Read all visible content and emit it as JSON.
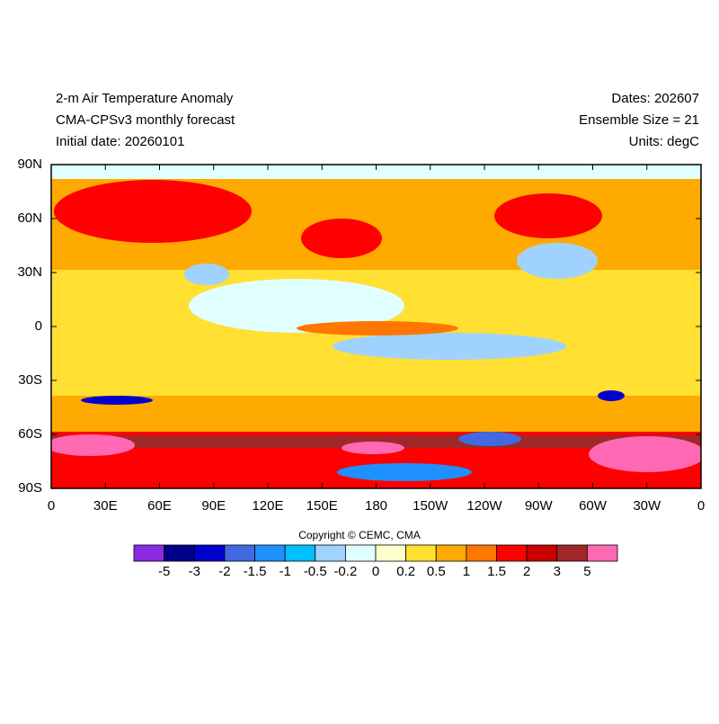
{
  "header": {
    "title": "2-m Air Temperature Anomaly",
    "subtitle": "CMA-CPSv3 monthly forecast",
    "initial_date": "Initial date: 20260101",
    "dates": "Dates: 202607",
    "ensemble": "Ensemble Size = 21",
    "units": "Units: degC"
  },
  "map": {
    "lat_labels": [
      "90N",
      "60N",
      "30N",
      "0",
      "30S",
      "60S",
      "90S"
    ],
    "lon_labels": [
      "0",
      "30E",
      "60E",
      "90E",
      "120E",
      "150E",
      "180",
      "150W",
      "120W",
      "90W",
      "60W",
      "30W",
      "0"
    ]
  },
  "copyright": "Copyright © CEMC, CMA",
  "colorbar": {
    "colors": [
      "#8a2be2",
      "#00008b",
      "#0000cd",
      "#4169e1",
      "#1e90ff",
      "#00bfff",
      "#a0d2ff",
      "#e0ffff",
      "#ffffcc",
      "#ffe033",
      "#ffaa00",
      "#ff7700",
      "#ff0000",
      "#c80000",
      "#a02828",
      "#ff69b4"
    ],
    "labels": [
      "-5",
      "-3",
      "-2",
      "-1.5",
      "-1",
      "-0.5",
      "-0.2",
      "0",
      "0.2",
      "0.5",
      "1",
      "1.5",
      "2",
      "3",
      "5"
    ]
  }
}
